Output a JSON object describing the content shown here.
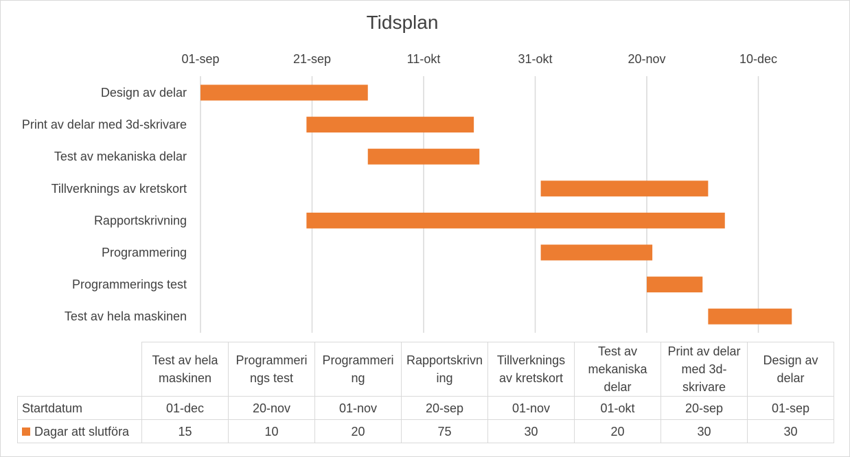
{
  "chart_data": {
    "type": "bar",
    "title": "Tidsplan",
    "orientation": "horizontal-gantt",
    "x_ticks": [
      "01-sep",
      "21-sep",
      "11-okt",
      "31-okt",
      "20-nov",
      "10-dec"
    ],
    "categories": [
      "Design av delar",
      "Print av delar med 3d-skrivare",
      "Test av mekaniska delar",
      "Tillverknings av kretskort",
      "Rapportskrivning",
      "Programmering",
      "Programmerings test",
      "Test av hela maskinen"
    ],
    "series": [
      {
        "name": "Startdatum",
        "hidden": true,
        "values": [
          "01-sep",
          "20-sep",
          "01-okt",
          "01-nov",
          "20-sep",
          "01-nov",
          "20-nov",
          "01-dec"
        ],
        "day_values": [
          0,
          19,
          30,
          61,
          19,
          61,
          80,
          91
        ]
      },
      {
        "name": "Dagar att slutföra",
        "values": [
          30,
          30,
          20,
          30,
          75,
          20,
          10,
          15
        ]
      }
    ],
    "bar_color": "#ed7d31",
    "grid": true
  },
  "table": {
    "headers": [
      "Test av hela maskinen",
      "Programmeri ngs test",
      "Programmeri ng",
      "Rapportskrivn ing",
      "Tillverknings av kretskort",
      "Test av mekaniska delar",
      "Print av delar med 3d-skrivare",
      "Design av delar"
    ],
    "rows": [
      {
        "label": "Startdatum",
        "legend": false,
        "cells": [
          "01-dec",
          "20-nov",
          "01-nov",
          "20-sep",
          "01-nov",
          "01-okt",
          "20-sep",
          "01-sep"
        ]
      },
      {
        "label": "Dagar att slutföra",
        "legend": true,
        "cells": [
          "15",
          "10",
          "20",
          "75",
          "30",
          "20",
          "30",
          "30"
        ]
      }
    ]
  }
}
